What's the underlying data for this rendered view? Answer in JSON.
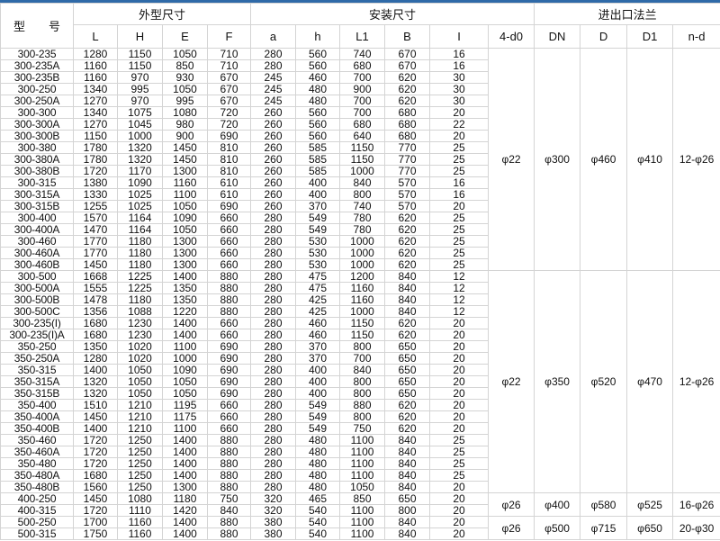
{
  "header": {
    "model": "型　　号",
    "group_outer": "外型尺寸",
    "group_install": "安装尺寸",
    "group_flange": "进出口法兰",
    "columns": [
      "L",
      "H",
      "E",
      "F",
      "a",
      "h",
      "L1",
      "B",
      "I",
      "4-d0",
      "DN",
      "D",
      "D1",
      "n-d"
    ]
  },
  "rows": [
    [
      "300-235",
      "1280",
      "1150",
      "1050",
      "710",
      "280",
      "560",
      "740",
      "670",
      "16"
    ],
    [
      "300-235A",
      "1160",
      "1150",
      "850",
      "710",
      "280",
      "560",
      "680",
      "670",
      "16"
    ],
    [
      "300-235B",
      "1160",
      "970",
      "930",
      "670",
      "245",
      "460",
      "700",
      "620",
      "30"
    ],
    [
      "300-250",
      "1340",
      "995",
      "1050",
      "670",
      "245",
      "480",
      "900",
      "620",
      "30"
    ],
    [
      "300-250A",
      "1270",
      "970",
      "995",
      "670",
      "245",
      "480",
      "700",
      "620",
      "30"
    ],
    [
      "300-300",
      "1340",
      "1075",
      "1080",
      "720",
      "260",
      "560",
      "700",
      "680",
      "20"
    ],
    [
      "300-300A",
      "1270",
      "1045",
      "980",
      "720",
      "260",
      "560",
      "680",
      "680",
      "22"
    ],
    [
      "300-300B",
      "1150",
      "1000",
      "900",
      "690",
      "260",
      "560",
      "640",
      "680",
      "20"
    ],
    [
      "300-380",
      "1780",
      "1320",
      "1450",
      "810",
      "260",
      "585",
      "1150",
      "770",
      "25"
    ],
    [
      "300-380A",
      "1780",
      "1320",
      "1450",
      "810",
      "260",
      "585",
      "1150",
      "770",
      "25"
    ],
    [
      "300-380B",
      "1720",
      "1170",
      "1300",
      "810",
      "260",
      "585",
      "1000",
      "770",
      "25"
    ],
    [
      "300-315",
      "1380",
      "1090",
      "1160",
      "610",
      "260",
      "400",
      "840",
      "570",
      "16"
    ],
    [
      "300-315A",
      "1330",
      "1025",
      "1100",
      "610",
      "260",
      "400",
      "800",
      "570",
      "16"
    ],
    [
      "300-315B",
      "1255",
      "1025",
      "1050",
      "690",
      "260",
      "370",
      "740",
      "570",
      "20"
    ],
    [
      "300-400",
      "1570",
      "1164",
      "1090",
      "660",
      "280",
      "549",
      "780",
      "620",
      "25"
    ],
    [
      "300-400A",
      "1470",
      "1164",
      "1050",
      "660",
      "280",
      "549",
      "780",
      "620",
      "25"
    ],
    [
      "300-460",
      "1770",
      "1180",
      "1300",
      "660",
      "280",
      "530",
      "1000",
      "620",
      "25"
    ],
    [
      "300-460A",
      "1770",
      "1180",
      "1300",
      "660",
      "280",
      "530",
      "1000",
      "620",
      "25"
    ],
    [
      "300-460B",
      "1450",
      "1180",
      "1300",
      "660",
      "280",
      "530",
      "1000",
      "620",
      "25"
    ],
    [
      "300-500",
      "1668",
      "1225",
      "1400",
      "880",
      "280",
      "475",
      "1200",
      "840",
      "12"
    ],
    [
      "300-500A",
      "1555",
      "1225",
      "1350",
      "880",
      "280",
      "475",
      "1160",
      "840",
      "12"
    ],
    [
      "300-500B",
      "1478",
      "1180",
      "1350",
      "880",
      "280",
      "425",
      "1160",
      "840",
      "12"
    ],
    [
      "300-500C",
      "1356",
      "1088",
      "1220",
      "880",
      "280",
      "425",
      "1000",
      "840",
      "12"
    ],
    [
      "300-235(I)",
      "1680",
      "1230",
      "1400",
      "660",
      "280",
      "460",
      "1150",
      "620",
      "20"
    ],
    [
      "300-235(I)A",
      "1680",
      "1230",
      "1400",
      "660",
      "280",
      "460",
      "1150",
      "620",
      "20"
    ],
    [
      "350-250",
      "1350",
      "1020",
      "1100",
      "690",
      "280",
      "370",
      "800",
      "650",
      "20"
    ],
    [
      "350-250A",
      "1280",
      "1020",
      "1000",
      "690",
      "280",
      "370",
      "700",
      "650",
      "20"
    ],
    [
      "350-315",
      "1400",
      "1050",
      "1090",
      "690",
      "280",
      "400",
      "840",
      "650",
      "20"
    ],
    [
      "350-315A",
      "1320",
      "1050",
      "1050",
      "690",
      "280",
      "400",
      "800",
      "650",
      "20"
    ],
    [
      "350-315B",
      "1320",
      "1050",
      "1050",
      "690",
      "280",
      "400",
      "800",
      "650",
      "20"
    ],
    [
      "350-400",
      "1510",
      "1210",
      "1195",
      "660",
      "280",
      "549",
      "880",
      "620",
      "20"
    ],
    [
      "350-400A",
      "1450",
      "1210",
      "1175",
      "660",
      "280",
      "549",
      "800",
      "620",
      "20"
    ],
    [
      "350-400B",
      "1400",
      "1210",
      "1100",
      "660",
      "280",
      "549",
      "750",
      "620",
      "20"
    ],
    [
      "350-460",
      "1720",
      "1250",
      "1400",
      "880",
      "280",
      "480",
      "1100",
      "840",
      "25"
    ],
    [
      "350-460A",
      "1720",
      "1250",
      "1400",
      "880",
      "280",
      "480",
      "1100",
      "840",
      "25"
    ],
    [
      "350-480",
      "1720",
      "1250",
      "1400",
      "880",
      "280",
      "480",
      "1100",
      "840",
      "25"
    ],
    [
      "350-480A",
      "1680",
      "1250",
      "1400",
      "880",
      "280",
      "480",
      "1100",
      "840",
      "25"
    ],
    [
      "350-480B",
      "1560",
      "1250",
      "1300",
      "880",
      "280",
      "480",
      "1050",
      "840",
      "20"
    ],
    [
      "400-250",
      "1450",
      "1080",
      "1180",
      "750",
      "320",
      "465",
      "850",
      "650",
      "20"
    ],
    [
      "400-315",
      "1720",
      "1110",
      "1420",
      "840",
      "320",
      "540",
      "1100",
      "800",
      "20"
    ],
    [
      "500-250",
      "1700",
      "1160",
      "1400",
      "880",
      "380",
      "540",
      "1100",
      "840",
      "20"
    ],
    [
      "500-315",
      "1750",
      "1160",
      "1400",
      "880",
      "380",
      "540",
      "1100",
      "840",
      "20"
    ]
  ],
  "flange_groups": [
    {
      "rows": 19,
      "values": [
        "φ22",
        "φ300",
        "φ460",
        "φ410",
        "12-φ26"
      ]
    },
    {
      "rows": 19,
      "values": [
        "φ22",
        "φ350",
        "φ520",
        "φ470",
        "12-φ26"
      ]
    },
    {
      "rows": 2,
      "values": [
        "φ26",
        "φ400",
        "φ580",
        "φ525",
        "16-φ26"
      ]
    },
    {
      "rows": 2,
      "values": [
        "φ26",
        "φ500",
        "φ715",
        "φ650",
        "20-φ30"
      ]
    }
  ],
  "colors": {
    "top_bar": "#2f6aa8",
    "grid": "#d4d4d4"
  }
}
